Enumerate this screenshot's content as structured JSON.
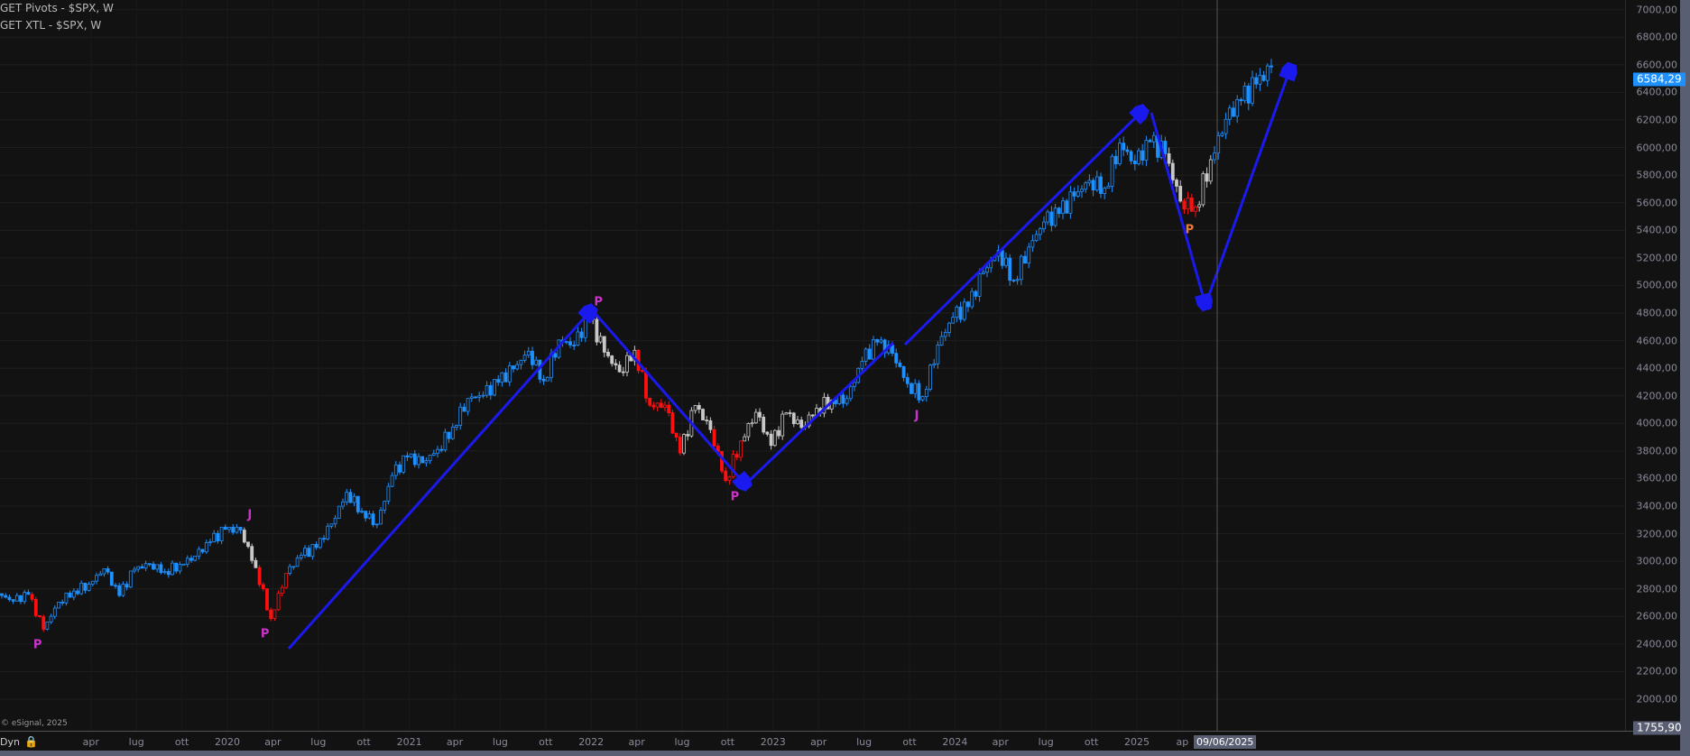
{
  "legends": [
    "GET Pivots - $SPX, W",
    "GET XTL - $SPX, W"
  ],
  "watermark": "© eSignal, 2025",
  "dyn_label": "Dyn",
  "last_price_label": "6584,29",
  "low_price_label": "1755,90",
  "cursor_date": "09/06/2025",
  "colors": {
    "up": "#1e90ff",
    "down": "#ff1010",
    "neutral": "#c8c8c8",
    "pivot": "#cc33cc",
    "pivot_alt": "#e87a3a",
    "arrow": "#1a1aee",
    "badge": "#1e90ff"
  },
  "pivots": [
    {
      "text": "P",
      "date": "2018-12",
      "color": "pivot"
    },
    {
      "text": "J",
      "date": "2020-02",
      "color": "pivot"
    },
    {
      "text": "P",
      "date": "2020-03",
      "color": "pivot"
    },
    {
      "text": "P",
      "date": "2022-01",
      "color": "pivot"
    },
    {
      "text": "P",
      "date": "2022-10",
      "color": "pivot"
    },
    {
      "text": "J",
      "date": "2023-10",
      "color": "pivot"
    },
    {
      "text": "P",
      "date": "2025-04",
      "color": "pivot_alt"
    }
  ],
  "chart_data": {
    "type": "candlestick",
    "symbol": "$SPX",
    "interval": "W",
    "ylim": [
      1755.9,
      7000
    ],
    "y_ticks": [
      "7000,00",
      "6800,00",
      "6600,00",
      "6400,00",
      "6200,00",
      "6000,00",
      "5800,00",
      "5600,00",
      "5400,00",
      "5200,00",
      "5000,00",
      "4800,00",
      "4600,00",
      "4400,00",
      "4200,00",
      "4000,00",
      "3800,00",
      "3600,00",
      "3400,00",
      "3200,00",
      "3000,00",
      "2800,00",
      "2600,00",
      "2400,00",
      "2200,00",
      "2000,00"
    ],
    "x_ticks": [
      "apr",
      "lug",
      "ott",
      "2020",
      "apr",
      "lug",
      "ott",
      "2021",
      "apr",
      "lug",
      "ott",
      "2022",
      "apr",
      "lug",
      "ott",
      "2023",
      "apr",
      "lug",
      "ott",
      "2024",
      "apr",
      "lug",
      "ott",
      "2025",
      "ap"
    ],
    "start_month": "2018-10",
    "monthly_close": [
      2711,
      2760,
      2507,
      2704,
      2784,
      2834,
      2946,
      2752,
      2942,
      2980,
      2926,
      2977,
      3038,
      3141,
      3231,
      3226,
      2954,
      2585,
      2912,
      3044,
      3100,
      3271,
      3500,
      3363,
      3270,
      3622,
      3756,
      3714,
      3811,
      3973,
      4181,
      4204,
      4298,
      4395,
      4523,
      4308,
      4605,
      4567,
      4766,
      4516,
      4374,
      4530,
      4132,
      4132,
      3785,
      4130,
      3955,
      3586,
      3872,
      4080,
      3840,
      4077,
      3970,
      4109,
      4169,
      4180,
      4450,
      4589,
      4508,
      4288,
      4194,
      4568,
      4770,
      4846,
      5096,
      5254,
      5036,
      5278,
      5460,
      5522,
      5648,
      5762,
      5705,
      6032,
      5882,
      6041,
      5955,
      5612,
      5569,
      5912,
      6205,
      6339,
      6460,
      6584.29
    ],
    "monthly_state": [
      "u",
      "u",
      "d",
      "u",
      "u",
      "u",
      "u",
      "u",
      "u",
      "u",
      "u",
      "u",
      "u",
      "u",
      "u",
      "u",
      "n",
      "d",
      "d",
      "u",
      "u",
      "u",
      "u",
      "u",
      "u",
      "u",
      "u",
      "u",
      "u",
      "u",
      "u",
      "u",
      "u",
      "u",
      "u",
      "u",
      "u",
      "u",
      "u",
      "n",
      "n",
      "n",
      "d",
      "d",
      "d",
      "n",
      "n",
      "d",
      "d",
      "n",
      "n",
      "n",
      "n",
      "n",
      "n",
      "u",
      "u",
      "u",
      "u",
      "u",
      "u",
      "u",
      "u",
      "u",
      "u",
      "u",
      "u",
      "u",
      "u",
      "u",
      "u",
      "u",
      "u",
      "u",
      "u",
      "u",
      "u",
      "n",
      "d",
      "n",
      "u",
      "u",
      "u",
      "u"
    ]
  }
}
